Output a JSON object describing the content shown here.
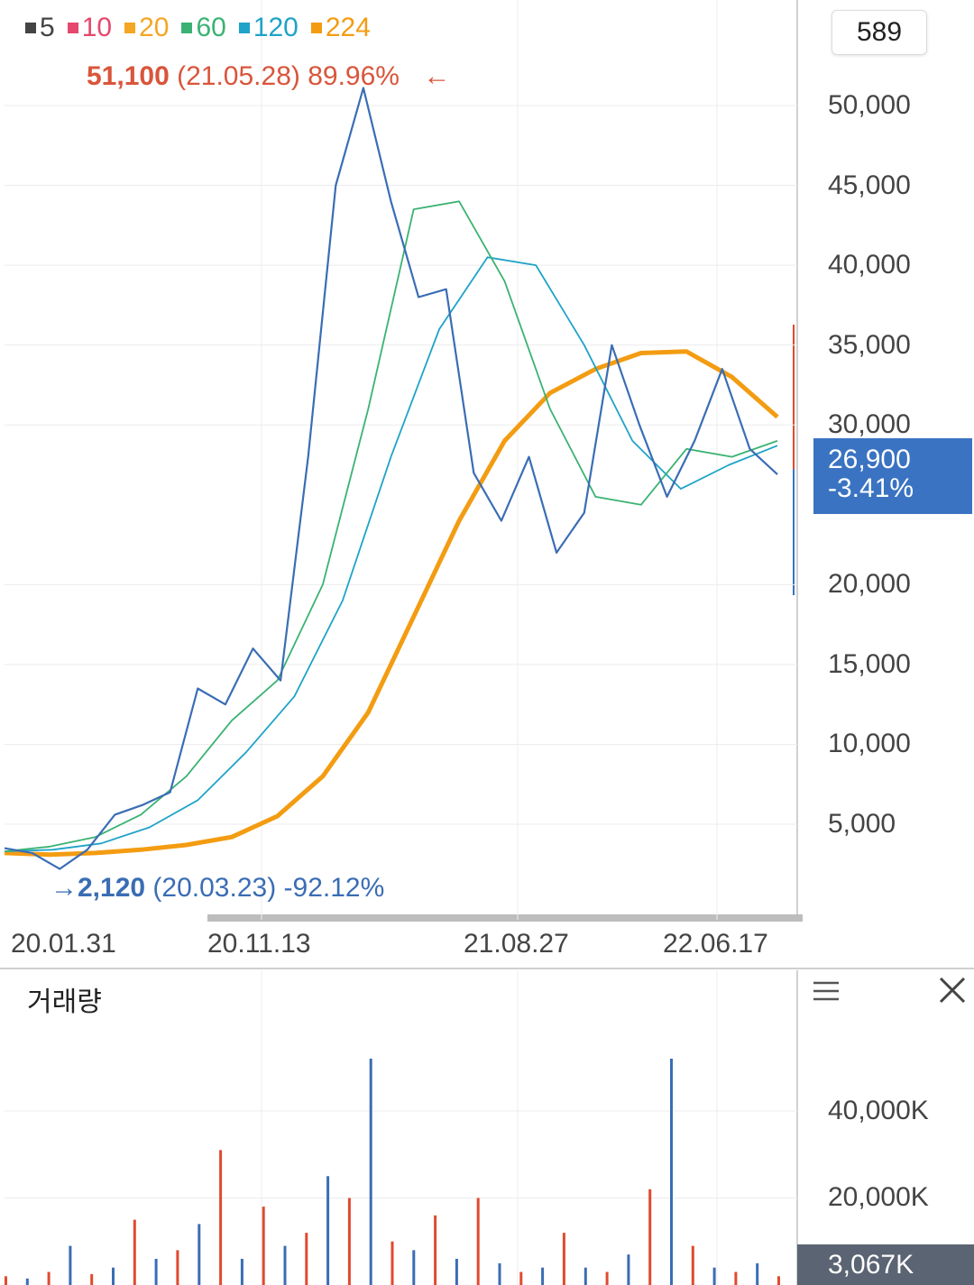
{
  "legend": [
    {
      "label": "5",
      "color": "#444444"
    },
    {
      "label": "10",
      "color": "#e6476c"
    },
    {
      "label": "20",
      "color": "#f5a623"
    },
    {
      "label": "60",
      "color": "#3bb273"
    },
    {
      "label": "120",
      "color": "#1fa3c8"
    },
    {
      "label": "224",
      "color": "#f39c12"
    }
  ],
  "counter": "589",
  "max_note": {
    "value": "51,100",
    "date": "(21.05.28)",
    "pct": "89.96%",
    "arrow": "←"
  },
  "min_note": {
    "arrow": "→",
    "value": "2,120",
    "date": "(20.03.23)",
    "pct": "-92.12%"
  },
  "current": {
    "price": "26,900",
    "change": "-3.41%"
  },
  "volume": {
    "title": "거래량",
    "current": "3,067K"
  },
  "chart_data": {
    "type": "line",
    "yaxis": {
      "ticks": [
        "50,000",
        "45,000",
        "40,000",
        "35,000",
        "30,000",
        "20,000",
        "15,000",
        "10,000",
        "5,000"
      ],
      "values": [
        50000,
        45000,
        40000,
        35000,
        30000,
        20000,
        15000,
        10000,
        5000
      ]
    },
    "xaxis": {
      "ticks": [
        "20.01.31",
        "20.11.13",
        "21.08.27",
        "22.06.17"
      ]
    },
    "series": [
      {
        "name": "224",
        "color": "#f39c12",
        "values": [
          3200,
          3100,
          3200,
          3400,
          3700,
          4200,
          5500,
          8000,
          12000,
          18000,
          24000,
          29000,
          32000,
          33500,
          34500,
          34600,
          33000,
          30500
        ]
      },
      {
        "name": "120",
        "color": "#1fa3c8",
        "values": [
          3300,
          3400,
          3800,
          4800,
          6500,
          9500,
          13000,
          19000,
          28000,
          36000,
          40500,
          40000,
          35000,
          29000,
          26000,
          27500,
          28700
        ]
      },
      {
        "name": "60",
        "color": "#3bb273",
        "values": [
          3300,
          3600,
          4200,
          5600,
          8000,
          11500,
          14000,
          20000,
          31000,
          43500,
          44000,
          39000,
          31000,
          25500,
          25000,
          28500,
          28000,
          29000
        ]
      }
    ],
    "price_series": {
      "name": "price",
      "color": "#3a6db4",
      "values": [
        3500,
        3200,
        2200,
        3400,
        5600,
        6200,
        7000,
        13500,
        12500,
        16000,
        14000,
        28000,
        45000,
        51100,
        44000,
        38000,
        38500,
        27000,
        24000,
        28000,
        22000,
        24500,
        35000,
        30000,
        25500,
        29000,
        33500,
        28500,
        26900
      ]
    },
    "volume_axis": {
      "ticks": [
        "40,000K",
        "20,000K"
      ],
      "values": [
        40000,
        20000
      ]
    },
    "volume_values": [
      2000,
      1500,
      3000,
      9000,
      2500,
      4000,
      15000,
      6000,
      8000,
      14000,
      31000,
      6000,
      18000,
      9000,
      12000,
      25000,
      20000,
      52000,
      10000,
      8000,
      16000,
      6000,
      20000,
      5000,
      3000,
      4000,
      12000,
      4000,
      3000,
      7000,
      22000,
      52000,
      9000,
      4000,
      3000,
      5000,
      2000
    ]
  }
}
